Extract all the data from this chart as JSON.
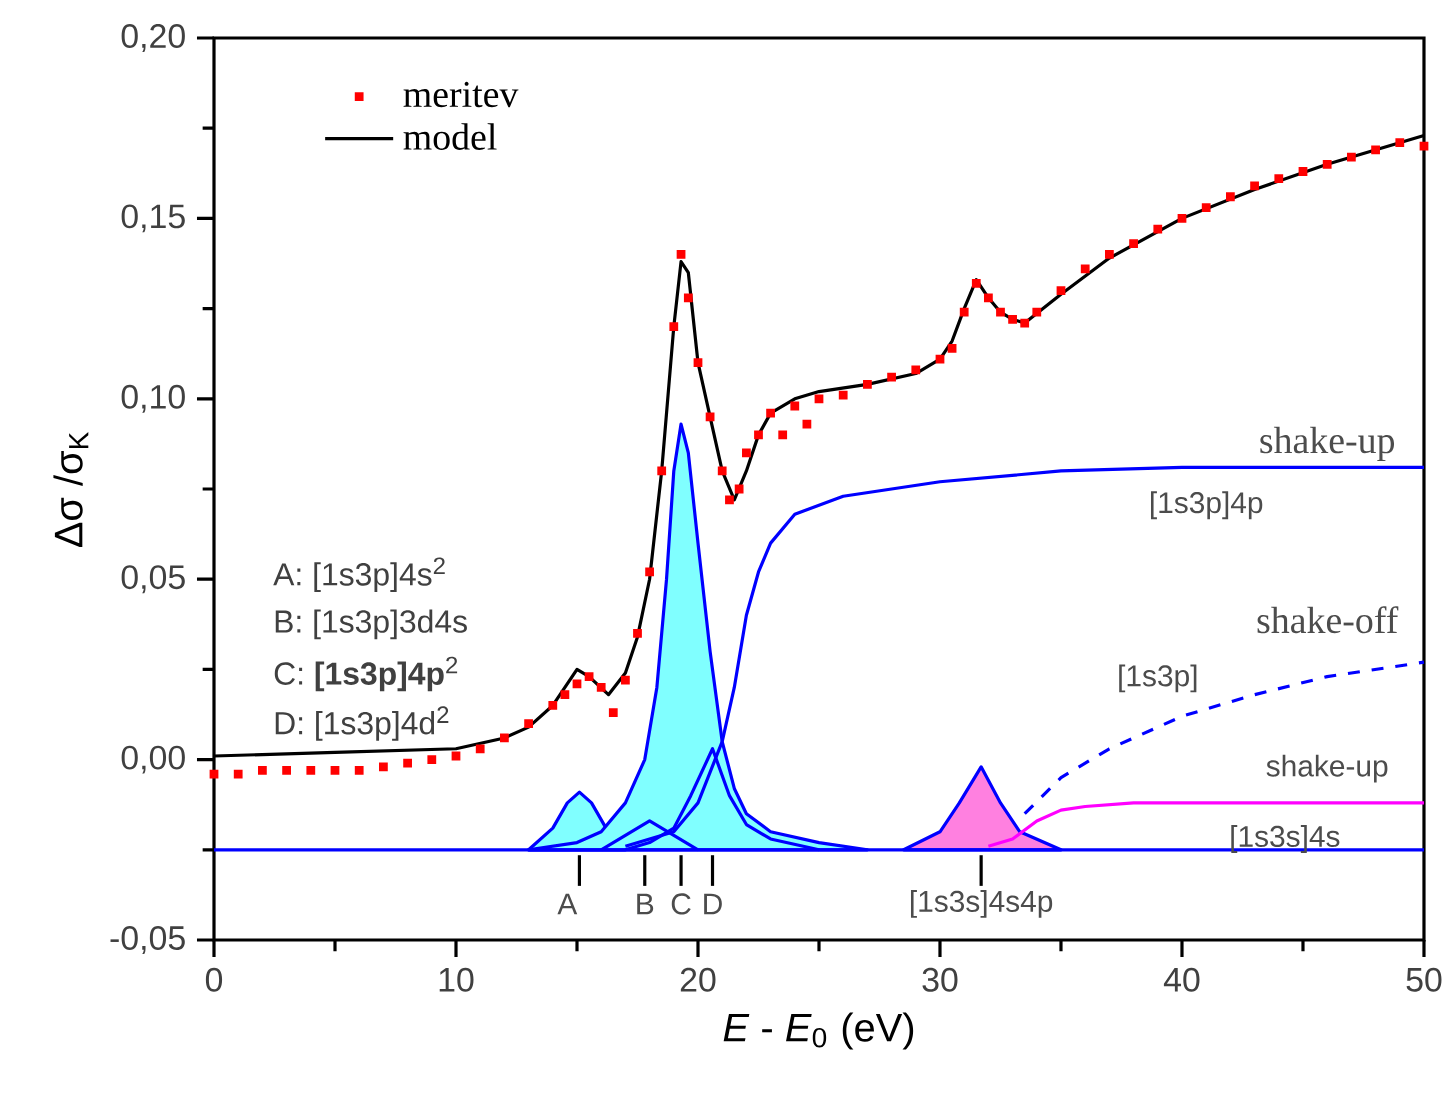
{
  "chart_data": {
    "type": "line",
    "xlabel": "*E* - *E*$_{0}$ (eV)",
    "ylabel": "Δσ /σ$_{K}$",
    "xlim": [
      0,
      50
    ],
    "ylim": [
      -0.05,
      0.2
    ],
    "xticks": [
      0,
      10,
      20,
      30,
      40,
      50
    ],
    "yticks": [
      {
        "value": -0.05,
        "label": "-0,05"
      },
      {
        "value": 0,
        "label": "0,00"
      },
      {
        "value": 0.05,
        "label": "0,05"
      },
      {
        "value": 0.1,
        "label": "0,10"
      },
      {
        "value": 0.15,
        "label": "0,15"
      },
      {
        "value": 0.2,
        "label": "0,20"
      }
    ],
    "legend": "top left",
    "series": [
      {
        "name": "meritev",
        "type": "scatter",
        "marker": "square",
        "color": "#ff0000",
        "x": [
          0,
          1,
          2,
          3,
          4,
          5,
          6,
          7,
          8,
          9,
          10,
          11,
          12,
          13,
          14,
          14.5,
          15,
          15.5,
          16,
          16.5,
          17,
          17.5,
          18,
          18.5,
          19,
          19.3,
          19.6,
          20,
          20.5,
          21,
          21.3,
          21.7,
          22,
          22.5,
          23,
          23.5,
          24,
          24.5,
          25,
          26,
          27,
          28,
          29,
          30,
          30.5,
          31,
          31.5,
          32,
          32.5,
          33,
          33.5,
          34,
          35,
          36,
          37,
          38,
          39,
          40,
          41,
          42,
          43,
          44,
          45,
          46,
          47,
          48,
          49,
          50
        ],
        "values": [
          -0.004,
          -0.004,
          -0.003,
          -0.003,
          -0.003,
          -0.003,
          -0.003,
          -0.002,
          -0.001,
          0.0,
          0.001,
          0.003,
          0.006,
          0.01,
          0.015,
          0.018,
          0.021,
          0.023,
          0.02,
          0.013,
          0.022,
          0.035,
          0.052,
          0.08,
          0.12,
          0.14,
          0.128,
          0.11,
          0.095,
          0.08,
          0.072,
          0.075,
          0.085,
          0.09,
          0.096,
          0.09,
          0.098,
          0.093,
          0.1,
          0.101,
          0.104,
          0.106,
          0.108,
          0.111,
          0.114,
          0.124,
          0.132,
          0.128,
          0.124,
          0.122,
          0.121,
          0.124,
          0.13,
          0.136,
          0.14,
          0.143,
          0.147,
          0.15,
          0.153,
          0.156,
          0.159,
          0.161,
          0.163,
          0.165,
          0.167,
          0.169,
          0.171,
          0.17
        ]
      },
      {
        "name": "model",
        "color": "#000000",
        "x": [
          0,
          5,
          10,
          12,
          13,
          14,
          15,
          15.5,
          16.3,
          17,
          17.5,
          18,
          18.5,
          19,
          19.3,
          19.6,
          20,
          20.5,
          21,
          21.5,
          22,
          22.5,
          23,
          24,
          25,
          27,
          29,
          30,
          30.5,
          31,
          31.5,
          32,
          32.5,
          33,
          33.5,
          35,
          37,
          40,
          43,
          46,
          50
        ],
        "values": [
          0.001,
          0.002,
          0.003,
          0.006,
          0.009,
          0.015,
          0.025,
          0.023,
          0.018,
          0.024,
          0.034,
          0.05,
          0.08,
          0.12,
          0.138,
          0.135,
          0.11,
          0.095,
          0.08,
          0.072,
          0.08,
          0.09,
          0.096,
          0.1,
          0.102,
          0.104,
          0.107,
          0.111,
          0.116,
          0.125,
          0.133,
          0.128,
          0.124,
          0.122,
          0.121,
          0.129,
          0.139,
          0.15,
          0.158,
          0.165,
          0.173
        ]
      },
      {
        "type": "area",
        "color": "#80ffff",
        "x": [
          13,
          14,
          14.6,
          15.1,
          15.6,
          16.2,
          17
        ],
        "values": [
          -0.025,
          -0.019,
          -0.012,
          -0.009,
          -0.012,
          -0.019,
          -0.025
        ]
      },
      {
        "type": "area",
        "color": "#80ffff",
        "x": [
          13,
          15,
          16,
          17,
          17.8,
          18.3,
          18.7,
          19,
          19.3,
          19.6,
          20,
          20.5,
          21,
          21.5,
          22,
          23,
          25,
          27
        ],
        "values": [
          -0.025,
          -0.023,
          -0.02,
          -0.012,
          0.0,
          0.02,
          0.05,
          0.08,
          0.093,
          0.085,
          0.06,
          0.03,
          0.005,
          -0.008,
          -0.015,
          -0.02,
          -0.023,
          -0.025
        ]
      },
      {
        "type": "area",
        "color": "#ff80e0",
        "x": [
          28.5,
          30,
          30.8,
          31.7,
          32.5,
          33.3,
          35
        ],
        "values": [
          -0.025,
          -0.02,
          -0.012,
          -0.002,
          -0.012,
          -0.02,
          -0.025
        ]
      },
      {
        "color": "#0000ff",
        "x": [
          16,
          17,
          18,
          19,
          20
        ],
        "values": [
          -0.025,
          -0.021,
          -0.017,
          -0.021,
          -0.025
        ]
      },
      {
        "color": "#0000ff",
        "x": [
          17,
          18,
          19,
          19.7,
          20.6,
          21.3,
          22,
          23,
          25
        ],
        "values": [
          -0.025,
          -0.023,
          -0.019,
          -0.01,
          0.003,
          -0.01,
          -0.018,
          -0.022,
          -0.025
        ]
      },
      {
        "color": "#0000ff",
        "x": [
          17,
          19,
          20,
          21,
          21.5,
          22,
          22.5,
          23,
          24,
          26,
          30,
          35,
          40,
          50
        ],
        "values": [
          -0.024,
          -0.02,
          -0.012,
          0.005,
          0.02,
          0.04,
          0.052,
          0.06,
          0.068,
          0.073,
          0.077,
          0.08,
          0.081,
          0.081
        ]
      },
      {
        "color": "#0000ff",
        "line_style": "dashed",
        "x": [
          33.5,
          35,
          37,
          40,
          43,
          46,
          50
        ],
        "values": [
          -0.015,
          -0.005,
          0.003,
          0.012,
          0.018,
          0.023,
          0.027
        ]
      },
      {
        "color": "#ff00ff",
        "x": [
          32,
          33,
          34,
          35,
          36,
          38,
          50
        ],
        "values": [
          -0.024,
          -0.022,
          -0.017,
          -0.014,
          -0.013,
          -0.012,
          -0.012
        ]
      },
      {
        "color": "#0000ff",
        "x": [
          0,
          50
        ],
        "values": [
          -0.025,
          -0.025
        ]
      }
    ],
    "annotations": [
      "A: [1s3p]4s$^{2}$",
      "B: [1s3p]3d4s",
      "C: **[1s3p]4p**$^{2}$",
      "D: [1s3p]4d$^{2}$",
      "shake-up",
      "[1s3p]4p",
      "shake-off",
      "[1s3p]",
      "shake-up",
      "[1s3s]4s",
      "A",
      "B",
      "C",
      "D",
      "[1s3s]4s4p"
    ]
  }
}
